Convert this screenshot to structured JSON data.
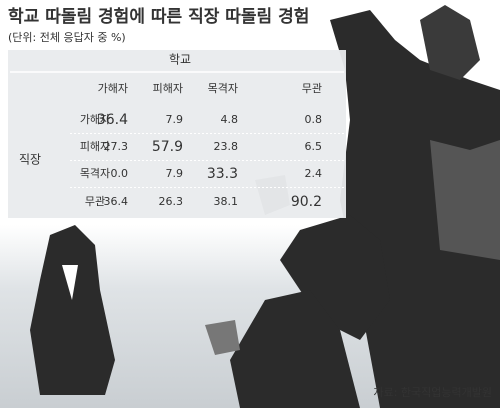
{
  "header": {
    "title": "학교 따돌림 경험에 따른 직장 따돌림 경험",
    "subtitle": "(단위: 전체 응답자 중 %)"
  },
  "table": {
    "column_group": "학교",
    "row_group": "직장",
    "columns": [
      "가해자",
      "피해자",
      "목격자",
      "무관"
    ],
    "rows": [
      {
        "label": "가해자",
        "cells": [
          "36.4",
          "7.9",
          "4.8",
          "0.8"
        ]
      },
      {
        "label": "피해자",
        "cells": [
          "27.3",
          "57.9",
          "23.8",
          "6.5"
        ]
      },
      {
        "label": "목격자",
        "cells": [
          "0.0",
          "7.9",
          "33.3",
          "2.4"
        ]
      },
      {
        "label": "무관",
        "cells": [
          "36.4",
          "26.3",
          "38.1",
          "90.2"
        ]
      }
    ]
  },
  "source": "자료: 한국직업능력개발원"
}
